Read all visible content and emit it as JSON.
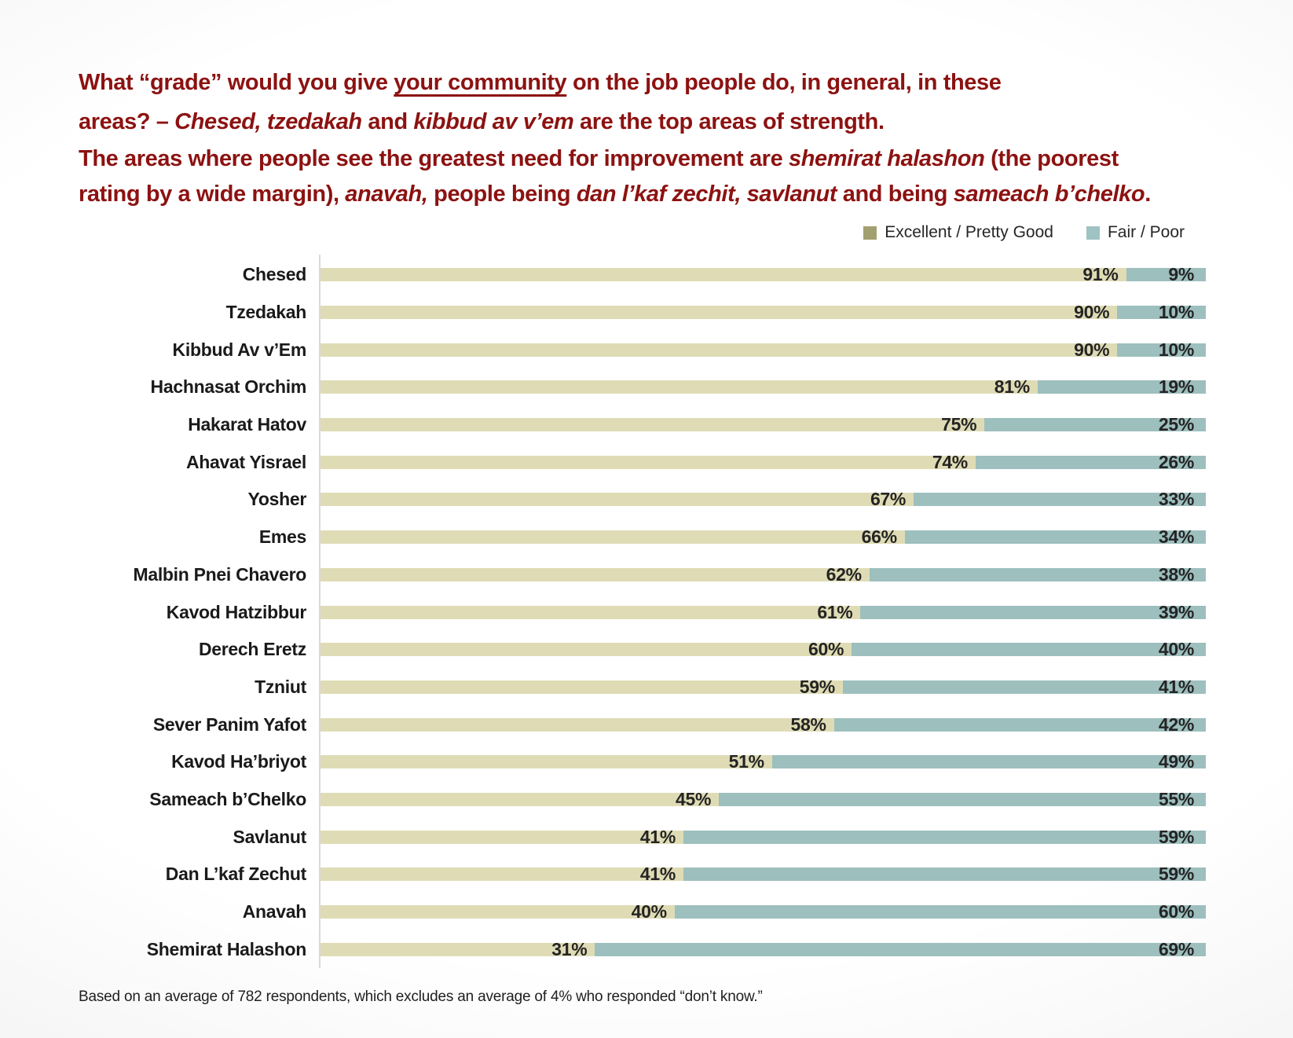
{
  "slide": {
    "title_color": "#8c1211",
    "title_lines": [
      {
        "segments": [
          {
            "t": "What “grade” would you give "
          },
          {
            "t": "your community",
            "u": true
          },
          {
            "t": " on the job people do, in general, in these"
          }
        ]
      },
      {
        "segments": [
          {
            "t": "areas? – "
          },
          {
            "t": "Chesed, tzedakah",
            "i": true
          },
          {
            "t": " and "
          },
          {
            "t": "kibbud av v’em",
            "i": true
          },
          {
            "t": " are the top areas of strength."
          }
        ]
      },
      {
        "segments": [
          {
            "t": "The areas where people see the greatest need for improvement are "
          },
          {
            "t": "shemirat halashon",
            "i": true
          },
          {
            "t": " (the poorest"
          }
        ]
      },
      {
        "segments": [
          {
            "t": "rating by a wide margin), "
          },
          {
            "t": "anavah,",
            "i": true
          },
          {
            "t": " people being "
          },
          {
            "t": "dan l’kaf zechit, savlanut",
            "i": true
          },
          {
            "t": " and being "
          },
          {
            "t": "sameach b’chelko",
            "i": true
          },
          {
            "t": "."
          }
        ]
      }
    ],
    "footnote": "Based on an average of 782 respondents, which excludes an average of 4% who responded “don’t know.”"
  },
  "chart_data": {
    "type": "bar",
    "subtype": "horizontal-stacked-100",
    "title": "",
    "xlabel": "",
    "ylabel": "",
    "xlim": [
      0,
      100
    ],
    "grid": false,
    "legend_position": "top-right",
    "axis_line_color": "#d9d9d9",
    "value_label_format": "{value}%",
    "categories": [
      "Chesed",
      "Tzedakah",
      "Kibbud Av v’Em",
      "Hachnasat Orchim",
      "Hakarat Hatov",
      "Ahavat Yisrael",
      "Yosher",
      "Emes",
      "Malbin Pnei Chavero",
      "Kavod Hatzibbur",
      "Derech Eretz",
      "Tzniut",
      "Sever Panim Yafot",
      "Kavod Ha’briyot",
      "Sameach b’Chelko",
      "Savlanut",
      "Dan L’kaf Zechut",
      "Anavah",
      "Shemirat Halashon"
    ],
    "series": [
      {
        "name": "Excellent / Pretty Good",
        "bar_color": "#dfdcb5",
        "legend_color": "#a3a06f",
        "values": [
          91,
          90,
          90,
          81,
          75,
          74,
          67,
          66,
          62,
          61,
          60,
          59,
          58,
          51,
          45,
          41,
          41,
          40,
          31
        ]
      },
      {
        "name": "Fair / Poor",
        "bar_color": "#9dbfbe",
        "legend_color": "#9fc2c2",
        "values": [
          9,
          10,
          10,
          19,
          25,
          26,
          33,
          34,
          38,
          39,
          40,
          41,
          42,
          49,
          55,
          59,
          59,
          60,
          69
        ]
      }
    ]
  }
}
